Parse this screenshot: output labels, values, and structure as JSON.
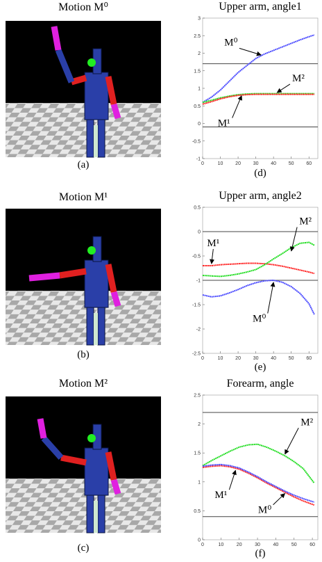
{
  "panels": [
    {
      "title": "Motion M⁰",
      "caption": "(a)"
    },
    {
      "title": "Motion M¹",
      "caption": "(b)"
    },
    {
      "title": "Motion M²",
      "caption": "(c)"
    }
  ],
  "chart_data": [
    {
      "type": "line",
      "title": "Upper arm, angle1",
      "caption": "(d)",
      "x": [
        0,
        5,
        10,
        15,
        20,
        25,
        30,
        35,
        40,
        45,
        50,
        55,
        60,
        63
      ],
      "xlim": [
        0,
        65
      ],
      "xticks": [
        0,
        10,
        20,
        30,
        40,
        50,
        60
      ],
      "ylim": [
        -1,
        3
      ],
      "yticks": [
        -1,
        -0.5,
        0,
        0.5,
        1,
        1.5,
        2,
        2.5,
        3
      ],
      "reference_lines": [
        1.7,
        -0.1
      ],
      "series": [
        {
          "name": "M⁰",
          "color": "#4a4aff",
          "values": [
            0.6,
            0.75,
            0.95,
            1.2,
            1.45,
            1.65,
            1.85,
            1.98,
            2.08,
            2.18,
            2.28,
            2.38,
            2.47,
            2.52
          ]
        },
        {
          "name": "M²",
          "color": "#22dd22",
          "values": [
            0.6,
            0.66,
            0.73,
            0.78,
            0.82,
            0.84,
            0.85,
            0.85,
            0.85,
            0.85,
            0.85,
            0.85,
            0.85,
            0.85
          ]
        },
        {
          "name": "M¹",
          "color": "#ff2222",
          "values": [
            0.55,
            0.62,
            0.7,
            0.76,
            0.8,
            0.82,
            0.83,
            0.83,
            0.83,
            0.83,
            0.83,
            0.83,
            0.83,
            0.83
          ]
        }
      ]
    },
    {
      "type": "line",
      "title": "Upper arm, angle2",
      "caption": "(e)",
      "x": [
        0,
        5,
        10,
        15,
        20,
        25,
        30,
        35,
        40,
        45,
        50,
        55,
        60,
        63
      ],
      "xlim": [
        0,
        65
      ],
      "xticks": [
        0,
        10,
        20,
        30,
        40,
        50,
        60
      ],
      "ylim": [
        -2.5,
        0.5
      ],
      "yticks": [
        -2.5,
        -2,
        -1.5,
        -1,
        -0.5,
        0,
        0.5
      ],
      "reference_lines": [
        0,
        -1
      ],
      "series": [
        {
          "name": "M¹",
          "color": "#ff2222",
          "values": [
            -0.7,
            -0.7,
            -0.68,
            -0.67,
            -0.66,
            -0.65,
            -0.65,
            -0.66,
            -0.68,
            -0.71,
            -0.75,
            -0.79,
            -0.83,
            -0.86
          ]
        },
        {
          "name": "M²",
          "color": "#22dd22",
          "values": [
            -0.9,
            -0.91,
            -0.92,
            -0.9,
            -0.87,
            -0.83,
            -0.78,
            -0.68,
            -0.56,
            -0.45,
            -0.33,
            -0.24,
            -0.22,
            -0.28
          ]
        },
        {
          "name": "M⁰",
          "color": "#4a4aff",
          "values": [
            -1.3,
            -1.34,
            -1.32,
            -1.26,
            -1.19,
            -1.11,
            -1.05,
            -1.01,
            -1.0,
            -1.04,
            -1.13,
            -1.27,
            -1.48,
            -1.7
          ]
        }
      ]
    },
    {
      "type": "line",
      "title": "Forearm, angle",
      "caption": "(f)",
      "x": [
        0,
        5,
        10,
        15,
        20,
        25,
        30,
        35,
        40,
        45,
        50,
        55,
        61
      ],
      "xlim": [
        0,
        63
      ],
      "xticks": [
        0,
        10,
        20,
        30,
        40,
        50,
        60
      ],
      "ylim": [
        0,
        2.5
      ],
      "yticks": [
        0,
        0.5,
        1,
        1.5,
        2,
        2.5
      ],
      "reference_lines": [
        2.2,
        0.4
      ],
      "series": [
        {
          "name": "M²",
          "color": "#22dd22",
          "values": [
            1.28,
            1.37,
            1.45,
            1.53,
            1.6,
            1.64,
            1.65,
            1.6,
            1.53,
            1.45,
            1.35,
            1.23,
            0.98
          ]
        },
        {
          "name": "M¹",
          "color": "#ff2222",
          "values": [
            1.25,
            1.27,
            1.28,
            1.26,
            1.22,
            1.15,
            1.07,
            0.98,
            0.9,
            0.82,
            0.74,
            0.67,
            0.6
          ]
        },
        {
          "name": "M⁰",
          "color": "#4a4aff",
          "values": [
            1.27,
            1.29,
            1.3,
            1.28,
            1.24,
            1.17,
            1.09,
            1.0,
            0.92,
            0.84,
            0.77,
            0.71,
            0.65
          ]
        }
      ]
    }
  ]
}
